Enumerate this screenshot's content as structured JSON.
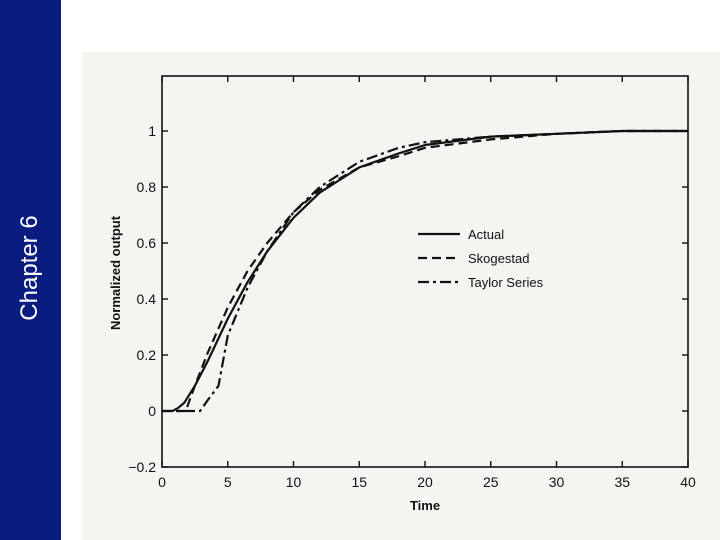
{
  "slide": {
    "chapter_label": "Chapter 6",
    "sidebar_color": "#0b1c80"
  },
  "chart_data": {
    "type": "line",
    "title": "",
    "xlabel": "Time",
    "ylabel": "Normalized output",
    "xlim": [
      0,
      40
    ],
    "ylim": [
      -0.2,
      1.1
    ],
    "xticks": [
      "0",
      "5",
      "10",
      "15",
      "20",
      "25",
      "30",
      "35",
      "40"
    ],
    "yticks": [
      "−0.2",
      "0",
      "0.2",
      "0.4",
      "0.6",
      "0.8",
      "1"
    ],
    "grid": false,
    "legend_position": "right-center",
    "series": [
      {
        "name": "Actual",
        "style": "solid",
        "x": [
          0.8,
          1.2,
          1.7,
          2.5,
          3.5,
          5,
          6.5,
          8,
          10,
          12,
          15,
          18,
          20,
          25,
          30,
          35,
          40
        ],
        "y": [
          0,
          0.01,
          0.03,
          0.09,
          0.18,
          0.33,
          0.46,
          0.57,
          0.69,
          0.78,
          0.87,
          0.92,
          0.95,
          0.98,
          0.99,
          1.0,
          1.0
        ]
      },
      {
        "name": "Skogestad",
        "style": "dashed",
        "x": [
          0,
          1.8,
          2.5,
          3.5,
          5,
          6.5,
          8,
          10,
          12,
          15,
          18,
          20,
          25,
          30,
          35,
          40
        ],
        "y": [
          0,
          0,
          0.09,
          0.21,
          0.37,
          0.5,
          0.6,
          0.71,
          0.79,
          0.87,
          0.91,
          0.94,
          0.97,
          0.99,
          1.0,
          1.0
        ]
      },
      {
        "name": "Taylor Series",
        "style": "dash-dot",
        "x": [
          0,
          2.9,
          3.5,
          4.3,
          5,
          6.5,
          8,
          10,
          12,
          15,
          18,
          20,
          25,
          30,
          35,
          40
        ],
        "y": [
          0,
          0,
          0.04,
          0.09,
          0.27,
          0.44,
          0.57,
          0.71,
          0.8,
          0.89,
          0.94,
          0.96,
          0.98,
          0.99,
          1.0,
          1.0
        ]
      }
    ]
  }
}
